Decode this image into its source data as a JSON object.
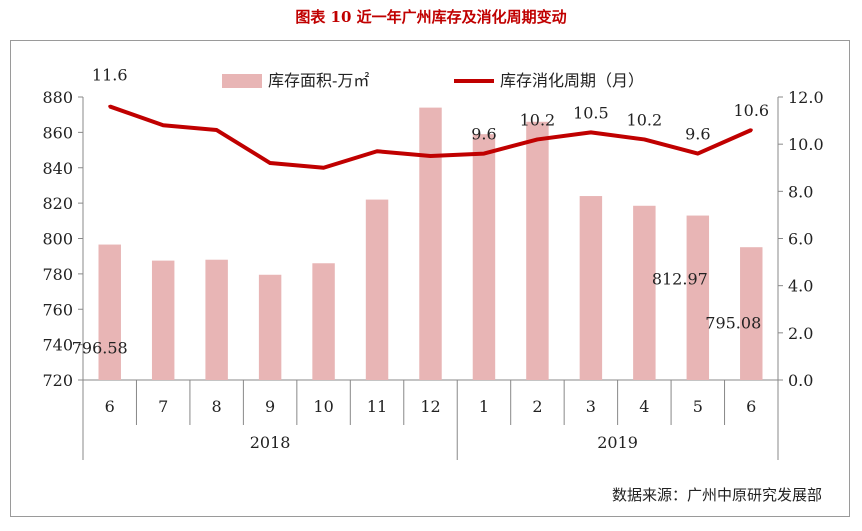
{
  "title": "图表 10   近一年广州库存及消化周期变动",
  "source": "数据来源：广州中原研究发展部",
  "chart_data": {
    "type": "bar+line",
    "categories": [
      "6",
      "7",
      "8",
      "9",
      "10",
      "11",
      "12",
      "1",
      "2",
      "3",
      "4",
      "5",
      "6"
    ],
    "years": [
      {
        "label": "2018",
        "start": 0,
        "end": 6
      },
      {
        "label": "2019",
        "start": 7,
        "end": 12
      }
    ],
    "series": [
      {
        "name": "库存面积-万㎡",
        "type": "bar",
        "axis": "left",
        "color": "#e8b5b5",
        "values": [
          796.58,
          787.5,
          788,
          779.5,
          786,
          822,
          874,
          859,
          866,
          824,
          818.5,
          812.97,
          795.08
        ]
      },
      {
        "name": "库存消化周期（月）",
        "type": "line",
        "axis": "right",
        "color": "#c00000",
        "values": [
          11.6,
          10.8,
          10.6,
          9.2,
          9.0,
          9.7,
          9.5,
          9.6,
          10.2,
          10.5,
          10.2,
          9.6,
          10.6
        ]
      }
    ],
    "y_left": {
      "min": 720,
      "max": 880,
      "ticks": [
        "720",
        "740",
        "760",
        "780",
        "800",
        "820",
        "840",
        "860",
        "880"
      ]
    },
    "y_right": {
      "min": 0,
      "max": 12,
      "ticks": [
        "0.0",
        "2.0",
        "4.0",
        "6.0",
        "8.0",
        "10.0",
        "12.0"
      ]
    },
    "bar_labels": [
      {
        "index": 0,
        "text": "796.58"
      },
      {
        "index": 11,
        "text": "812.97"
      },
      {
        "index": 12,
        "text": "795.08"
      }
    ],
    "line_labels": [
      {
        "index": 0,
        "text": "11.6"
      },
      {
        "index": 7,
        "text": "9.6"
      },
      {
        "index": 8,
        "text": "10.2"
      },
      {
        "index": 9,
        "text": "10.5"
      },
      {
        "index": 10,
        "text": "10.2"
      },
      {
        "index": 11,
        "text": "9.6"
      },
      {
        "index": 12,
        "text": "10.6"
      }
    ],
    "legend": [
      {
        "label": "库存面积-万㎡",
        "kind": "bar",
        "color": "#e8b5b5"
      },
      {
        "label": "库存消化周期（月）",
        "kind": "line",
        "color": "#c00000"
      }
    ],
    "legend_position": "top-center",
    "grid": false
  }
}
